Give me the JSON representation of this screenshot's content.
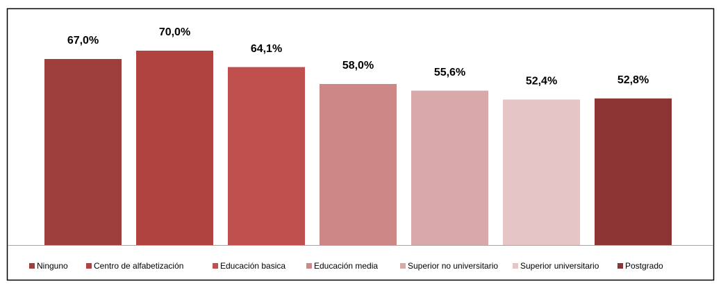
{
  "chart_data": {
    "type": "bar",
    "categories": [
      "Ninguno",
      "Centro de alfabetización",
      "Educación basica",
      "Educación media",
      "Superior no universitario",
      "Superior universitario",
      "Postgrado"
    ],
    "values": [
      67.0,
      70.0,
      64.1,
      58.0,
      55.6,
      52.4,
      52.8
    ],
    "value_labels": [
      "67,0%",
      "70,0%",
      "64,1%",
      "58,0%",
      "55,6%",
      "52,4%",
      "52,8%"
    ],
    "colors": [
      "#9e3f3d",
      "#b0433f",
      "#c0504d",
      "#cd8785",
      "#d9a9a9",
      "#e5c5c5",
      "#8b3433"
    ]
  }
}
